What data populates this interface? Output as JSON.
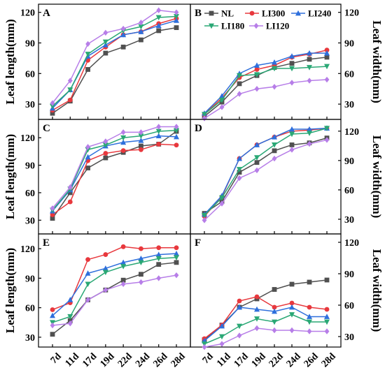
{
  "legend": [
    {
      "label": "NL",
      "color": "#505050",
      "marker": "square"
    },
    {
      "label": "LI300",
      "color": "#e8383d",
      "marker": "circle"
    },
    {
      "label": "LI240",
      "color": "#2e6fdc",
      "marker": "triangle-up"
    },
    {
      "label": "LI180",
      "color": "#2aa875",
      "marker": "triangle-down"
    },
    {
      "label": "LI120",
      "color": "#b77ee8",
      "marker": "diamond"
    }
  ],
  "x_tick_labels": [
    "7d",
    "11d",
    "17d",
    "19d",
    "22d",
    "24d",
    "26d",
    "28d"
  ],
  "chart_data": [
    {
      "panel": "A",
      "type": "line",
      "ylabel": "Leaf length(mm)",
      "yaxis_side": "left",
      "ylim": [
        15,
        128
      ],
      "yticks": [
        30,
        60,
        90,
        120
      ],
      "categories": [
        "7d",
        "11d",
        "17d",
        "19d",
        "22d",
        "24d",
        "26d",
        "28d"
      ],
      "series": [
        {
          "name": "NL",
          "values": [
            21,
            33,
            64,
            80,
            86,
            93,
            102,
            105
          ]
        },
        {
          "name": "LI300",
          "values": [
            24,
            34,
            73,
            86,
            98,
            101,
            109,
            114
          ]
        },
        {
          "name": "LI240",
          "values": [
            26,
            44,
            77,
            88,
            98,
            101,
            107,
            112
          ]
        },
        {
          "name": "LI180",
          "values": [
            28,
            44,
            79,
            91,
            102,
            106,
            115,
            116
          ]
        },
        {
          "name": "LI120",
          "values": [
            31,
            53,
            89,
            100,
            104,
            110,
            122,
            120
          ]
        }
      ]
    },
    {
      "panel": "B",
      "type": "line",
      "ylabel": "Leaf width(mm)",
      "yaxis_side": "right",
      "ylim": [
        15,
        128
      ],
      "yticks": [
        30,
        60,
        90,
        120
      ],
      "categories": [
        "7d",
        "11d",
        "17d",
        "19d",
        "22d",
        "24d",
        "26d",
        "28d"
      ],
      "series": [
        {
          "name": "NL",
          "values": [
            18,
            32,
            50,
            58,
            66,
            70,
            74,
            76
          ]
        },
        {
          "name": "LI300",
          "values": [
            20,
            36,
            56,
            64,
            68,
            76,
            79,
            83
          ]
        },
        {
          "name": "LI240",
          "values": [
            21,
            38,
            60,
            68,
            71,
            77,
            80,
            80
          ]
        },
        {
          "name": "LI180",
          "values": [
            20,
            34,
            58,
            59,
            65,
            65,
            66,
            67
          ]
        },
        {
          "name": "LI120",
          "values": [
            16,
            27,
            40,
            45,
            47,
            51,
            53,
            54
          ]
        }
      ]
    },
    {
      "panel": "C",
      "type": "line",
      "ylabel": "Leaf length(mm)",
      "yaxis_side": "left",
      "ylim": [
        15,
        140
      ],
      "yticks": [
        30,
        60,
        90,
        120
      ],
      "categories": [
        "7d",
        "11d",
        "17d",
        "19d",
        "22d",
        "24d",
        "26d",
        "28d"
      ],
      "series": [
        {
          "name": "NL",
          "values": [
            32,
            60,
            87,
            98,
            104,
            111,
            113,
            127
          ]
        },
        {
          "name": "LI300",
          "values": [
            36,
            50,
            95,
            103,
            106,
            107,
            113,
            112
          ]
        },
        {
          "name": "LI240",
          "values": [
            40,
            63,
            99,
            111,
            115,
            117,
            122,
            121
          ]
        },
        {
          "name": "LI180",
          "values": [
            41,
            64,
            107,
            112,
            120,
            122,
            127,
            128
          ]
        },
        {
          "name": "LI120",
          "values": [
            43,
            66,
            110,
            116,
            126,
            126,
            132,
            132
          ]
        }
      ]
    },
    {
      "panel": "D",
      "type": "line",
      "ylabel": "Leaf width(mm)",
      "yaxis_side": "right",
      "ylim": [
        15,
        132
      ],
      "yticks": [
        30,
        60,
        90,
        120
      ],
      "categories": [
        "7d",
        "11d",
        "17d",
        "19d",
        "22d",
        "24d",
        "26d",
        "28d"
      ],
      "series": [
        {
          "name": "NL",
          "values": [
            36,
            48,
            78,
            88,
            100,
            106,
            108,
            113
          ]
        },
        {
          "name": "LI300",
          "values": [
            33,
            53,
            92,
            106,
            114,
            120,
            121,
            123
          ]
        },
        {
          "name": "LI240",
          "values": [
            35,
            54,
            92,
            106,
            114,
            122,
            122,
            123
          ]
        },
        {
          "name": "LI180",
          "values": [
            34,
            52,
            81,
            93,
            106,
            117,
            118,
            123
          ]
        },
        {
          "name": "LI120",
          "values": [
            29,
            46,
            72,
            80,
            92,
            101,
            107,
            111
          ]
        }
      ]
    },
    {
      "panel": "E",
      "type": "line",
      "ylabel": "Leaf length(mm)",
      "yaxis_side": "left",
      "ylim": [
        20,
        135
      ],
      "yticks": [
        30,
        60,
        90,
        120
      ],
      "categories": [
        "7d",
        "11d",
        "17d",
        "19d",
        "22d",
        "24d",
        "26d",
        "28d"
      ],
      "series": [
        {
          "name": "NL",
          "values": [
            33,
            47,
            68,
            78,
            88,
            94,
            104,
            106
          ]
        },
        {
          "name": "LI300",
          "values": [
            58,
            65,
            109,
            114,
            122,
            120,
            121,
            121
          ]
        },
        {
          "name": "LI240",
          "values": [
            52,
            68,
            95,
            100,
            106,
            110,
            114,
            115
          ]
        },
        {
          "name": "LI180",
          "values": [
            45,
            51,
            84,
            96,
            102,
            106,
            110,
            111
          ]
        },
        {
          "name": "LI120",
          "values": [
            42,
            44,
            68,
            78,
            84,
            86,
            90,
            93
          ]
        }
      ]
    },
    {
      "panel": "F",
      "type": "line",
      "ylabel": "Leaf width(mm)",
      "yaxis_side": "right",
      "ylim": [
        20,
        128
      ],
      "yticks": [
        30,
        60,
        90,
        120
      ],
      "categories": [
        "7d",
        "11d",
        "17d",
        "19d",
        "22d",
        "24d",
        "26d",
        "28d"
      ],
      "series": [
        {
          "name": "NL",
          "values": [
            27,
            41,
            58,
            66,
            75,
            80,
            82,
            84
          ]
        },
        {
          "name": "LI300",
          "values": [
            28,
            41,
            64,
            68,
            58,
            62,
            58,
            56
          ]
        },
        {
          "name": "LI240",
          "values": [
            26,
            40,
            58,
            56,
            54,
            58,
            49,
            49
          ]
        },
        {
          "name": "LI180",
          "values": [
            23,
            30,
            40,
            47,
            44,
            51,
            44,
            44
          ]
        },
        {
          "name": "LI120",
          "values": [
            20,
            23,
            31,
            38,
            36,
            36,
            35,
            35
          ]
        }
      ]
    }
  ]
}
